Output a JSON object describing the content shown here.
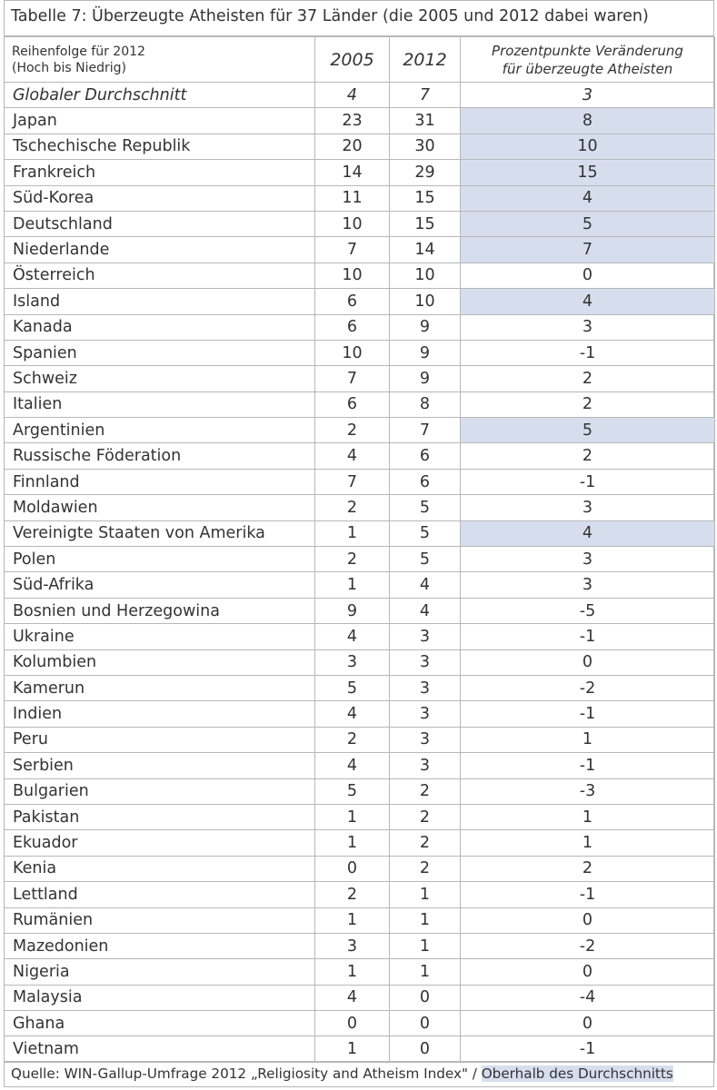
{
  "title": "Tabelle 7: Überzeugte Atheisten für 37 Länder (die 2005 und 2012 dabei waren)",
  "header": {
    "order_line1": "Reihenfolge für 2012",
    "order_line2": "(Hoch bis Niedrig)",
    "year_2005": "2005",
    "year_2012": "2012",
    "change_line1": "Prozentpunkte Veränderung",
    "change_line2": "für überzeugte Atheisten"
  },
  "average": {
    "name": "Globaler Durchschnitt",
    "v2005": "4",
    "v2012": "7",
    "change": "3"
  },
  "rows": [
    {
      "name": "Japan",
      "v2005": "23",
      "v2012": "31",
      "change": "8",
      "above_average": true
    },
    {
      "name": "Tschechische Republik",
      "v2005": "20",
      "v2012": "30",
      "change": "10",
      "above_average": true
    },
    {
      "name": "Frankreich",
      "v2005": "14",
      "v2012": "29",
      "change": "15",
      "above_average": true
    },
    {
      "name": "Süd-Korea",
      "v2005": "11",
      "v2012": "15",
      "change": "4",
      "above_average": true
    },
    {
      "name": "Deutschland",
      "v2005": "10",
      "v2012": "15",
      "change": "5",
      "above_average": true
    },
    {
      "name": "Niederlande",
      "v2005": "7",
      "v2012": "14",
      "change": "7",
      "above_average": true
    },
    {
      "name": "Österreich",
      "v2005": "10",
      "v2012": "10",
      "change": "0",
      "above_average": false
    },
    {
      "name": "Island",
      "v2005": "6",
      "v2012": "10",
      "change": "4",
      "above_average": true
    },
    {
      "name": "Kanada",
      "v2005": "6",
      "v2012": "9",
      "change": "3",
      "above_average": false
    },
    {
      "name": "Spanien",
      "v2005": "10",
      "v2012": "9",
      "change": "-1",
      "above_average": false
    },
    {
      "name": "Schweiz",
      "v2005": "7",
      "v2012": "9",
      "change": "2",
      "above_average": false
    },
    {
      "name": "Italien",
      "v2005": "6",
      "v2012": "8",
      "change": "2",
      "above_average": false
    },
    {
      "name": "Argentinien",
      "v2005": "2",
      "v2012": "7",
      "change": "5",
      "above_average": true
    },
    {
      "name": "Russische Föderation",
      "v2005": "4",
      "v2012": "6",
      "change": "2",
      "above_average": false
    },
    {
      "name": "Finnland",
      "v2005": "7",
      "v2012": "6",
      "change": "-1",
      "above_average": false
    },
    {
      "name": "Moldawien",
      "v2005": "2",
      "v2012": "5",
      "change": "3",
      "above_average": false
    },
    {
      "name": "Vereinigte Staaten von Amerika",
      "v2005": "1",
      "v2012": "5",
      "change": "4",
      "above_average": true
    },
    {
      "name": "Polen",
      "v2005": "2",
      "v2012": "5",
      "change": "3",
      "above_average": false
    },
    {
      "name": "Süd-Afrika",
      "v2005": "1",
      "v2012": "4",
      "change": "3",
      "above_average": false
    },
    {
      "name": "Bosnien und Herzegowina",
      "v2005": "9",
      "v2012": "4",
      "change": "-5",
      "above_average": false
    },
    {
      "name": "Ukraine",
      "v2005": "4",
      "v2012": "3",
      "change": "-1",
      "above_average": false
    },
    {
      "name": "Kolumbien",
      "v2005": "3",
      "v2012": "3",
      "change": "0",
      "above_average": false
    },
    {
      "name": "Kamerun",
      "v2005": "5",
      "v2012": "3",
      "change": "-2",
      "above_average": false
    },
    {
      "name": "Indien",
      "v2005": "4",
      "v2012": "3",
      "change": "-1",
      "above_average": false
    },
    {
      "name": "Peru",
      "v2005": "2",
      "v2012": "3",
      "change": "1",
      "above_average": false
    },
    {
      "name": "Serbien",
      "v2005": "4",
      "v2012": "3",
      "change": "-1",
      "above_average": false
    },
    {
      "name": "Bulgarien",
      "v2005": "5",
      "v2012": "2",
      "change": "-3",
      "above_average": false
    },
    {
      "name": "Pakistan",
      "v2005": "1",
      "v2012": "2",
      "change": "1",
      "above_average": false
    },
    {
      "name": "Ekuador",
      "v2005": "1",
      "v2012": "2",
      "change": "1",
      "above_average": false
    },
    {
      "name": "Kenia",
      "v2005": "0",
      "v2012": "2",
      "change": "2",
      "above_average": false
    },
    {
      "name": "Lettland",
      "v2005": "2",
      "v2012": "1",
      "change": "-1",
      "above_average": false
    },
    {
      "name": "Rumänien",
      "v2005": "1",
      "v2012": "1",
      "change": "0",
      "above_average": false
    },
    {
      "name": "Mazedonien",
      "v2005": "3",
      "v2012": "1",
      "change": "-2",
      "above_average": false
    },
    {
      "name": "Nigeria",
      "v2005": "1",
      "v2012": "1",
      "change": "0",
      "above_average": false
    },
    {
      "name": "Malaysia",
      "v2005": "4",
      "v2012": "0",
      "change": "-4",
      "above_average": false
    },
    {
      "name": "Ghana",
      "v2005": "0",
      "v2012": "0",
      "change": "0",
      "above_average": false
    },
    {
      "name": "Vietnam",
      "v2005": "1",
      "v2012": "0",
      "change": "-1",
      "above_average": false
    }
  ],
  "source": {
    "text": "Quelle: WIN-Gallup-Umfrage 2012 „Religiosity and Atheism Index\" / ",
    "legend_label": "Oberhalb des Durchschnitts"
  },
  "colors": {
    "highlight": "#d6deee",
    "border": "#b7b7b7",
    "text": "#333333"
  }
}
